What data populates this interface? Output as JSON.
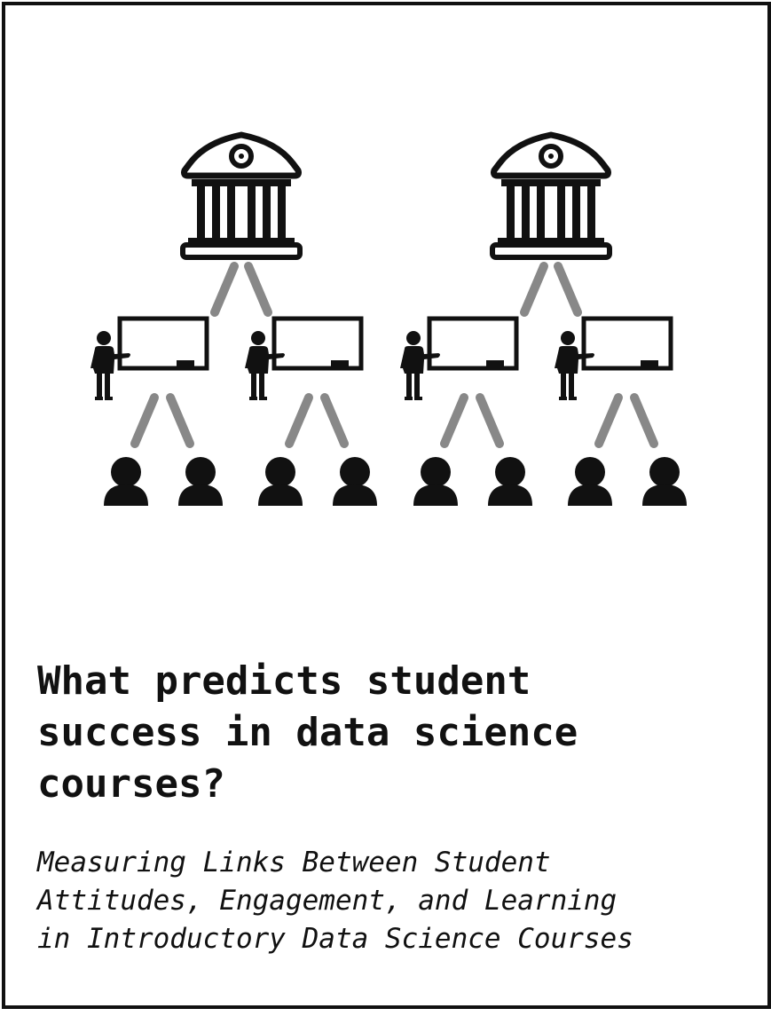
{
  "title": {
    "line1": "What predicts student",
    "line2": "success in data science",
    "line3": "courses?"
  },
  "subtitle": {
    "line1": "Measuring Links Between Student",
    "line2": "Attitudes, Engagement, and Learning",
    "line3": "in Introductory Data Science Courses"
  },
  "diagram": {
    "institutions": 2,
    "classrooms_per_institution": 2,
    "students_per_classroom": 2,
    "icons": {
      "institution": "institution-icon",
      "classroom": "teacher-whiteboard-icon",
      "student": "student-icon"
    },
    "colors": {
      "icon": "#111111",
      "connector": "#888888",
      "border": "#111111"
    }
  }
}
